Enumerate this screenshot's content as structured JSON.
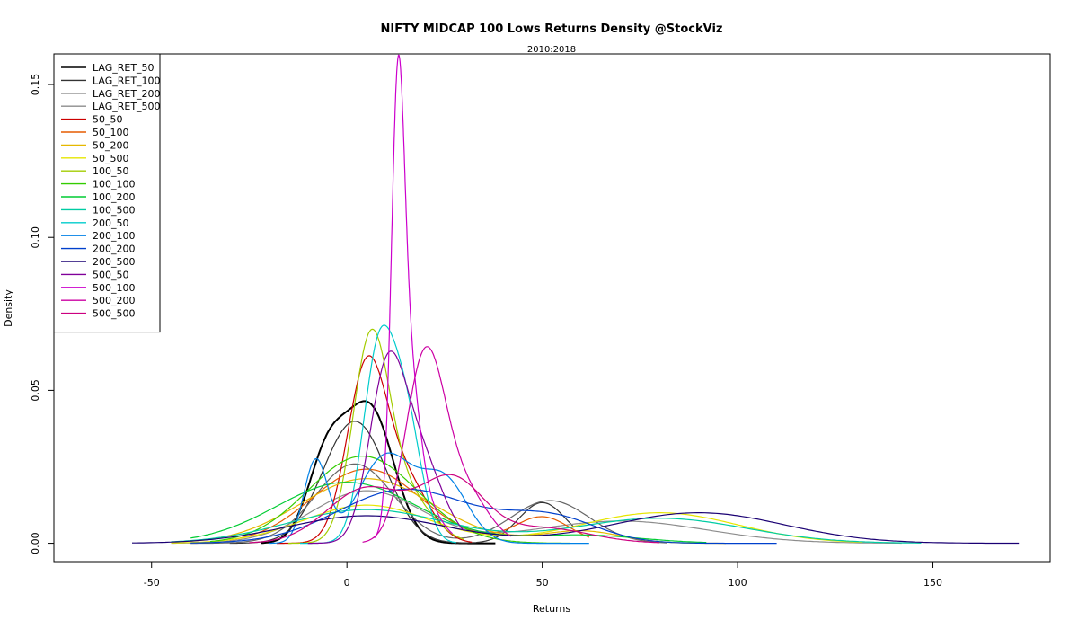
{
  "chart_data": {
    "type": "line",
    "title": "NIFTY MIDCAP 100 Lows Returns Density @StockViz",
    "subtitle": "2010:2018",
    "xlabel": "Returns",
    "ylabel": "Density",
    "xlim": [
      -75,
      180
    ],
    "ylim": [
      -0.006,
      0.16
    ],
    "xticks": [
      -50,
      0,
      50,
      100,
      150
    ],
    "xtick_labels": [
      "-50",
      "0",
      "50",
      "100",
      "150"
    ],
    "yticks": [
      0.0,
      0.05,
      0.1,
      0.15
    ],
    "ytick_labels": [
      "0.00",
      "0.05",
      "0.10",
      "0.15"
    ],
    "legend_position": "top-left",
    "grid": false,
    "series": [
      {
        "name": "LAG_RET_50",
        "color": "#000000",
        "range": [
          -22,
          38
        ],
        "comps": [
          [
            0.35,
            -5,
            5
          ],
          [
            0.65,
            6,
            6
          ]
        ]
      },
      {
        "name": "LAG_RET_100",
        "color": "#333333",
        "range": [
          -30,
          58
        ],
        "comps": [
          [
            0.8,
            2,
            8
          ],
          [
            0.2,
            50,
            6
          ]
        ]
      },
      {
        "name": "LAG_RET_200",
        "color": "#666666",
        "range": [
          -40,
          82
        ],
        "comps": [
          [
            0.65,
            2,
            10
          ],
          [
            0.35,
            52,
            10
          ]
        ]
      },
      {
        "name": "LAG_RET_500",
        "color": "#8c8c8c",
        "range": [
          -45,
          142
        ],
        "comps": [
          [
            0.6,
            5,
            14
          ],
          [
            0.4,
            70,
            22
          ]
        ]
      },
      {
        "name": "50_50",
        "color": "#cc0000",
        "range": [
          -18,
          32
        ],
        "comps": [
          [
            0.7,
            5,
            5
          ],
          [
            0.3,
            15,
            6
          ]
        ]
      },
      {
        "name": "50_100",
        "color": "#e65c00",
        "range": [
          -30,
          62
        ],
        "comps": [
          [
            0.85,
            5,
            14
          ],
          [
            0.15,
            50,
            7
          ]
        ]
      },
      {
        "name": "50_200",
        "color": "#e6b800",
        "range": [
          -40,
          97
        ],
        "comps": [
          [
            0.9,
            5,
            17
          ],
          [
            0.1,
            60,
            10
          ]
        ]
      },
      {
        "name": "50_500",
        "color": "#e6e600",
        "range": [
          -45,
          132
        ],
        "comps": [
          [
            0.5,
            5,
            16
          ],
          [
            0.5,
            80,
            20
          ]
        ]
      },
      {
        "name": "100_50",
        "color": "#a3cc00",
        "range": [
          -15,
          30
        ],
        "comps": [
          [
            0.7,
            6,
            4.6
          ],
          [
            0.3,
            14,
            7
          ]
        ]
      },
      {
        "name": "100_100",
        "color": "#33cc00",
        "range": [
          -35,
          57
        ],
        "comps": [
          [
            1.0,
            4,
            14
          ]
        ]
      },
      {
        "name": "100_200",
        "color": "#00cc33",
        "range": [
          -40,
          92
        ],
        "comps": [
          [
            0.9,
            0,
            18
          ],
          [
            0.1,
            60,
            15
          ]
        ]
      },
      {
        "name": "100_500",
        "color": "#00cca3",
        "range": [
          -45,
          147
        ],
        "comps": [
          [
            0.55,
            5,
            20
          ],
          [
            0.45,
            80,
            22
          ]
        ]
      },
      {
        "name": "200_50",
        "color": "#00cccc",
        "range": [
          -12,
          28
        ],
        "comps": [
          [
            0.6,
            8,
            4
          ],
          [
            0.4,
            15,
            4
          ]
        ]
      },
      {
        "name": "200_100",
        "color": "#0080e6",
        "range": [
          -20,
          62
        ],
        "comps": [
          [
            0.2,
            -8,
            3
          ],
          [
            0.5,
            10,
            7
          ],
          [
            0.3,
            25,
            6
          ]
        ]
      },
      {
        "name": "200_200",
        "color": "#0040cc",
        "range": [
          -40,
          110
        ],
        "comps": [
          [
            0.75,
            15,
            17
          ],
          [
            0.25,
            52,
            12
          ]
        ]
      },
      {
        "name": "200_500",
        "color": "#1a0073",
        "range": [
          -55,
          172
        ],
        "comps": [
          [
            0.45,
            5,
            20
          ],
          [
            0.55,
            90,
            22
          ]
        ]
      },
      {
        "name": "500_50",
        "color": "#800099",
        "range": [
          -10,
          30
        ],
        "comps": [
          [
            0.55,
            10,
            4.5
          ],
          [
            0.45,
            18,
            6
          ]
        ]
      },
      {
        "name": "500_100",
        "color": "#cc00cc",
        "range": [
          7,
          27
        ],
        "comps": [
          [
            0.55,
            13,
            1.7
          ],
          [
            0.25,
            16,
            2.5
          ],
          [
            0.2,
            18,
            5
          ]
        ]
      },
      {
        "name": "500_200",
        "color": "#cc00a3",
        "range": [
          4,
          42
        ],
        "comps": [
          [
            0.75,
            20,
            5
          ],
          [
            0.25,
            30,
            6
          ]
        ]
      },
      {
        "name": "500_500",
        "color": "#cc0080",
        "range": [
          -25,
          80
        ],
        "comps": [
          [
            0.45,
            5,
            10
          ],
          [
            0.4,
            27,
            8
          ],
          [
            0.15,
            50,
            12
          ]
        ]
      }
    ]
  }
}
